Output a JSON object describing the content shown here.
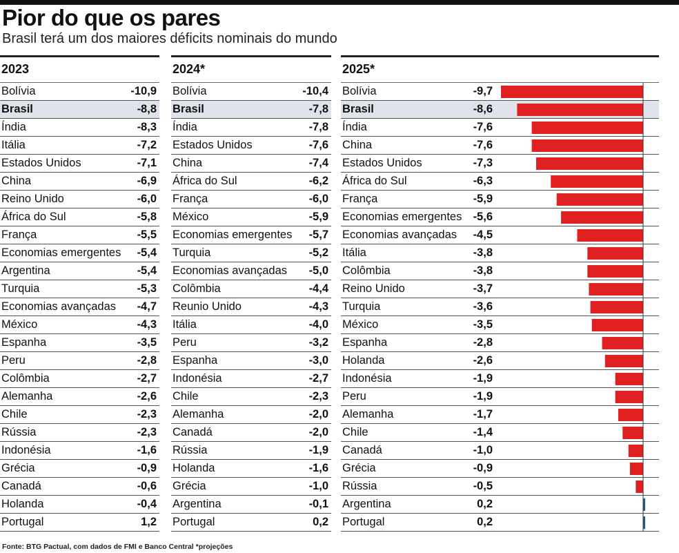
{
  "title": "Pior do que os pares",
  "subtitle": "Brasil terá um dos maiores déficits nominais do mundo",
  "source": "Fonte: BTG Pactual, com dados de FMI e Banco Central  *projeções",
  "highlight": "Brasil",
  "colors": {
    "negative": "#e02020",
    "positive": "#1d5f8a",
    "highlight_bg": "#dfe4ec"
  },
  "tables": [
    {
      "header": "2023",
      "rows": [
        {
          "name": "Bolívia",
          "value": "-10,9"
        },
        {
          "name": "Brasil",
          "value": "-8,8"
        },
        {
          "name": "Índia",
          "value": "-8,3"
        },
        {
          "name": "Itália",
          "value": "-7,2"
        },
        {
          "name": "Estados Unidos",
          "value": "-7,1"
        },
        {
          "name": "China",
          "value": "-6,9"
        },
        {
          "name": "Reino Unido",
          "value": "-6,0"
        },
        {
          "name": "África do Sul",
          "value": "-5,8"
        },
        {
          "name": "França",
          "value": "-5,5"
        },
        {
          "name": "Economias emergentes",
          "value": "-5,4"
        },
        {
          "name": "Argentina",
          "value": "-5,4"
        },
        {
          "name": "Turquia",
          "value": "-5,3"
        },
        {
          "name": "Economias avançadas",
          "value": "-4,7"
        },
        {
          "name": "México",
          "value": "-4,3"
        },
        {
          "name": "Espanha",
          "value": "-3,5"
        },
        {
          "name": "Peru",
          "value": "-2,8"
        },
        {
          "name": "Colômbia",
          "value": "-2,7"
        },
        {
          "name": "Alemanha",
          "value": "-2,6"
        },
        {
          "name": "Chile",
          "value": "-2,3"
        },
        {
          "name": "Rússia",
          "value": "-2,3"
        },
        {
          "name": "Indonésia",
          "value": "-1,6"
        },
        {
          "name": "Grécia",
          "value": "-0,9"
        },
        {
          "name": "Canadá",
          "value": "-0,6"
        },
        {
          "name": "Holanda",
          "value": "-0,4"
        },
        {
          "name": "Portugal",
          "value": "1,2"
        }
      ]
    },
    {
      "header": "2024*",
      "rows": [
        {
          "name": "Bolívia",
          "value": "-10,4"
        },
        {
          "name": "Brasil",
          "value": "-7,8"
        },
        {
          "name": "Índia",
          "value": "-7,8"
        },
        {
          "name": "Estados Unidos",
          "value": "-7,6"
        },
        {
          "name": "China",
          "value": "-7,4"
        },
        {
          "name": "África do Sul",
          "value": "-6,2"
        },
        {
          "name": "França",
          "value": "-6,0"
        },
        {
          "name": "México",
          "value": "-5,9"
        },
        {
          "name": "Economias emergentes",
          "value": "-5,7"
        },
        {
          "name": "Turquia",
          "value": "-5,2"
        },
        {
          "name": "Economias avançadas",
          "value": "-5,0"
        },
        {
          "name": "Colômbia",
          "value": "-4,4"
        },
        {
          "name": "Reunio Unido",
          "value": "-4,3"
        },
        {
          "name": "Itália",
          "value": "-4,0"
        },
        {
          "name": "Peru",
          "value": "-3,2"
        },
        {
          "name": "Espanha",
          "value": "-3,0"
        },
        {
          "name": "Indonésia",
          "value": "-2,7"
        },
        {
          "name": "Chile",
          "value": "-2,3"
        },
        {
          "name": "Alemanha",
          "value": "-2,0"
        },
        {
          "name": "Canadá",
          "value": "-2,0"
        },
        {
          "name": "Rússia",
          "value": "-1,9"
        },
        {
          "name": "Holanda",
          "value": "-1,6"
        },
        {
          "name": "Grécia",
          "value": "-1,0"
        },
        {
          "name": "Argentina",
          "value": "-0,1"
        },
        {
          "name": "Portugal",
          "value": "0,2"
        }
      ]
    }
  ],
  "chart_data": {
    "type": "bar",
    "orientation": "horizontal",
    "header": "2025*",
    "categories": [
      "Bolívia",
      "Brasil",
      "Índia",
      "China",
      "Estados Unidos",
      "África do Sul",
      "França",
      "Economias emergentes",
      "Economias avançadas",
      "Itália",
      "Colômbia",
      "Reino Unido",
      "Turquia",
      "México",
      "Espanha",
      "Holanda",
      "Indonésia",
      "Peru",
      "Alemanha",
      "Chile",
      "Canadá",
      "Grécia",
      "Rússia",
      "Argentina",
      "Portugal"
    ],
    "values": [
      -9.7,
      -8.6,
      -7.6,
      -7.6,
      -7.3,
      -6.3,
      -5.9,
      -5.6,
      -4.5,
      -3.8,
      -3.8,
      -3.7,
      -3.6,
      -3.5,
      -2.8,
      -2.6,
      -1.9,
      -1.9,
      -1.7,
      -1.4,
      -1.0,
      -0.9,
      -0.5,
      0.2,
      0.2
    ],
    "labels": [
      "-9,7",
      "-8,6",
      "-7,6",
      "-7,6",
      "-7,3",
      "-6,3",
      "-5,9",
      "-5,6",
      "-4,5",
      "-3,8",
      "-3,8",
      "-3,7",
      "-3,6",
      "-3,5",
      "-2,8",
      "-2,6",
      "-1,9",
      "-1,9",
      "-1,7",
      "-1,4",
      "-1,0",
      "-0,9",
      "-0,5",
      "0,2",
      "0,2"
    ],
    "xlim": [
      -9.7,
      0.2
    ],
    "grid": false,
    "legend": "none"
  }
}
